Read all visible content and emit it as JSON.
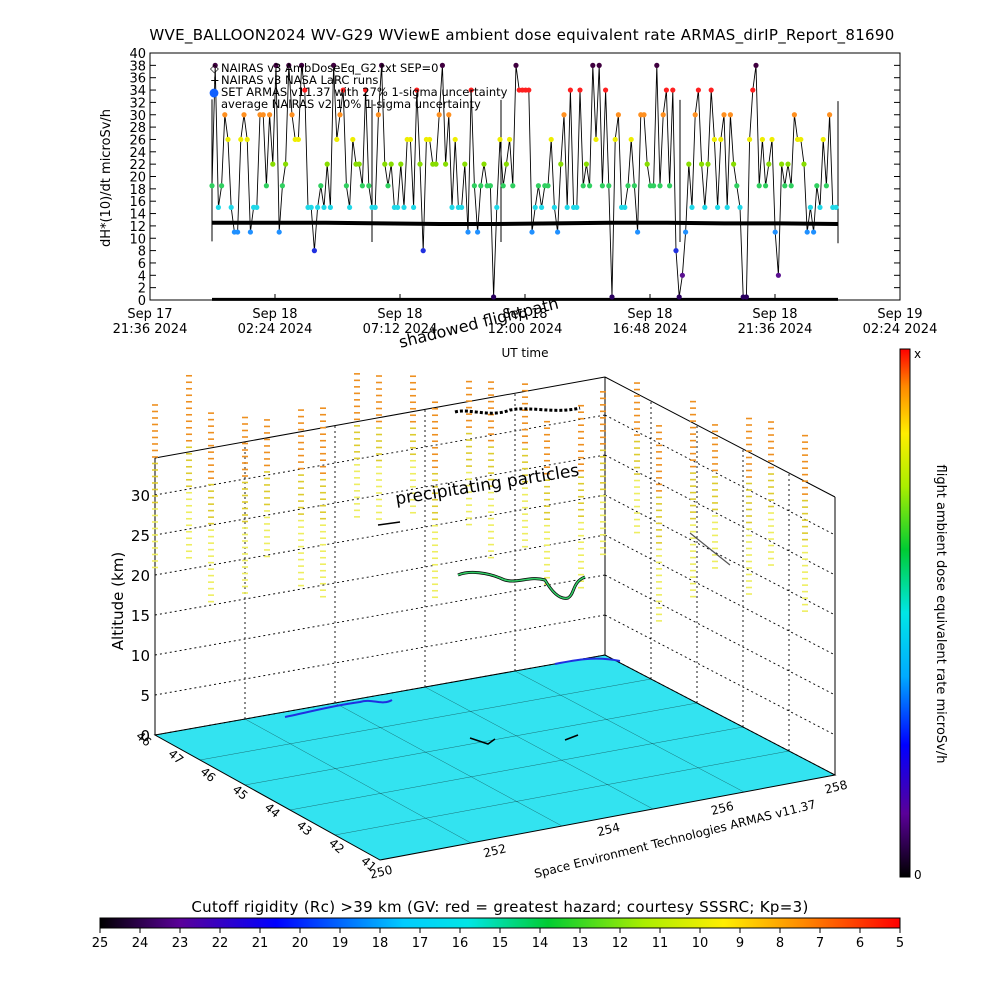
{
  "chart_data": [
    {
      "type": "scatter",
      "title": "WVE_BALLOON2024 WV-G29 WViewE ambient dose equivalent rate ARMAS_dirIP_Report_81690",
      "ylabel": "dH*(10)/dt microSv/h",
      "xlabel": "UT time",
      "ylim": [
        0,
        40
      ],
      "yticks": [
        "0",
        "2",
        "4",
        "6",
        "8",
        "10",
        "12",
        "14",
        "16",
        "18",
        "20",
        "22",
        "24",
        "26",
        "28",
        "30",
        "32",
        "34",
        "36",
        "38",
        "40"
      ],
      "xticks": [
        {
          "l1": "Sep 17",
          "l2": "21:36 2024"
        },
        {
          "l1": "Sep 18",
          "l2": "02:24 2024"
        },
        {
          "l1": "Sep 18",
          "l2": "07:12 2024"
        },
        {
          "l1": "Sep 18",
          "l2": "12:00 2024"
        },
        {
          "l1": "Sep 18",
          "l2": "16:48 2024"
        },
        {
          "l1": "Sep 18",
          "l2": "21:36 2024"
        },
        {
          "l1": "Sep 19",
          "l2": "02:24 2024"
        }
      ],
      "legend": [
        {
          "symbol": "◇",
          "label": "NAIRAS v3 AmbDoseEq_G2.txt SEP=0"
        },
        {
          "symbol": "+",
          "label": "NAIRAS v3 NASA LaRC runs"
        },
        {
          "symbol": "●",
          "label": "SET ARMAS v11.37 with 27% 1-sigma uncertainty"
        },
        {
          "symbol": "",
          "label": "average NAIRAS v2 10% 1-sigma uncertainty"
        }
      ],
      "series": [
        {
          "name": "NAIRAS v3 NASA LaRC runs",
          "values": [
            12.5,
            12.5,
            12.5,
            12.4,
            12.3,
            12.3,
            12.4,
            12.5,
            12.5,
            12.4,
            12.4,
            12.3
          ]
        },
        {
          "name": "SET ARMAS v11.37 with 27% 1-sigma uncertainty",
          "levels": [
            0.5,
            4,
            8,
            11,
            15,
            18.5,
            22,
            26,
            30,
            34,
            38
          ]
        }
      ],
      "legend_placement": "top-left"
    },
    {
      "type": "scatter",
      "subtitle": "shadowed flightpath",
      "ylabel": "Altitude (km)",
      "zticks": [
        "0",
        "5",
        "10",
        "15",
        "20",
        "25",
        "30"
      ],
      "lat_ticks": [
        "46",
        "47",
        "46",
        "45",
        "44",
        "43",
        "42",
        "41"
      ],
      "lon_ticks": [
        "250",
        "252",
        "254",
        "256",
        "258"
      ],
      "annotation": "precipitating particles",
      "credit": "Space Environment Technologies ARMAS v11.37",
      "colorbar": {
        "label": "flight ambient dose equivalent rate microSv/h",
        "top": "x",
        "bottom": "0"
      }
    },
    {
      "type": "heatmap",
      "title": "Cutoff rigidity (Rc) >39 km (GV: red = greatest hazard; courtesy SSSRC; Kp=3)",
      "ticks": [
        "25",
        "24",
        "23",
        "22",
        "21",
        "20",
        "19",
        "18",
        "17",
        "16",
        "15",
        "14",
        "13",
        "12",
        "11",
        "10",
        "9",
        "8",
        "7",
        "6",
        "5"
      ]
    }
  ],
  "colors": {
    "rainbow": [
      "#000000",
      "#3a0070",
      "#2200cc",
      "#0044ff",
      "#00aaff",
      "#00e6e6",
      "#00cc66",
      "#33dd00",
      "#aaee00",
      "#ffee00",
      "#ff9900",
      "#ff2200"
    ],
    "floor": "#33e3f0"
  }
}
